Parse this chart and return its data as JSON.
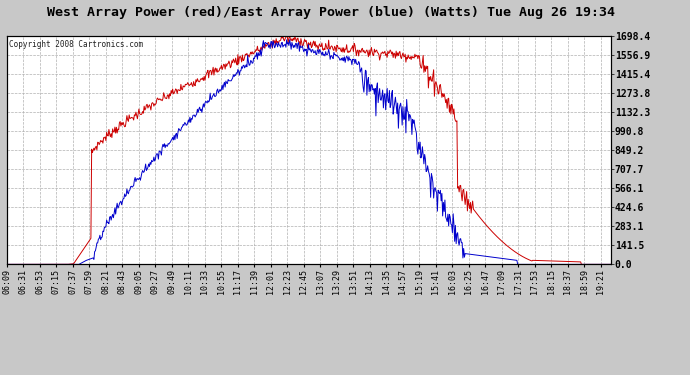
{
  "title": "West Array Power (red)/East Array Power (blue) (Watts) Tue Aug 26 19:34",
  "copyright_text": "Copyright 2008 Cartronics.com",
  "background_color": "#c8c8c8",
  "plot_background": "#ffffff",
  "grid_color": "#b0b0b0",
  "title_fontsize": 9.5,
  "ylabel_right": [
    "0.0",
    "141.5",
    "283.1",
    "424.6",
    "566.1",
    "707.7",
    "849.2",
    "990.8",
    "1132.3",
    "1273.8",
    "1415.4",
    "1556.9",
    "1698.4"
  ],
  "ymax": 1698.4,
  "ymin": 0.0,
  "red_line_color": "#cc0000",
  "blue_line_color": "#0000cc"
}
